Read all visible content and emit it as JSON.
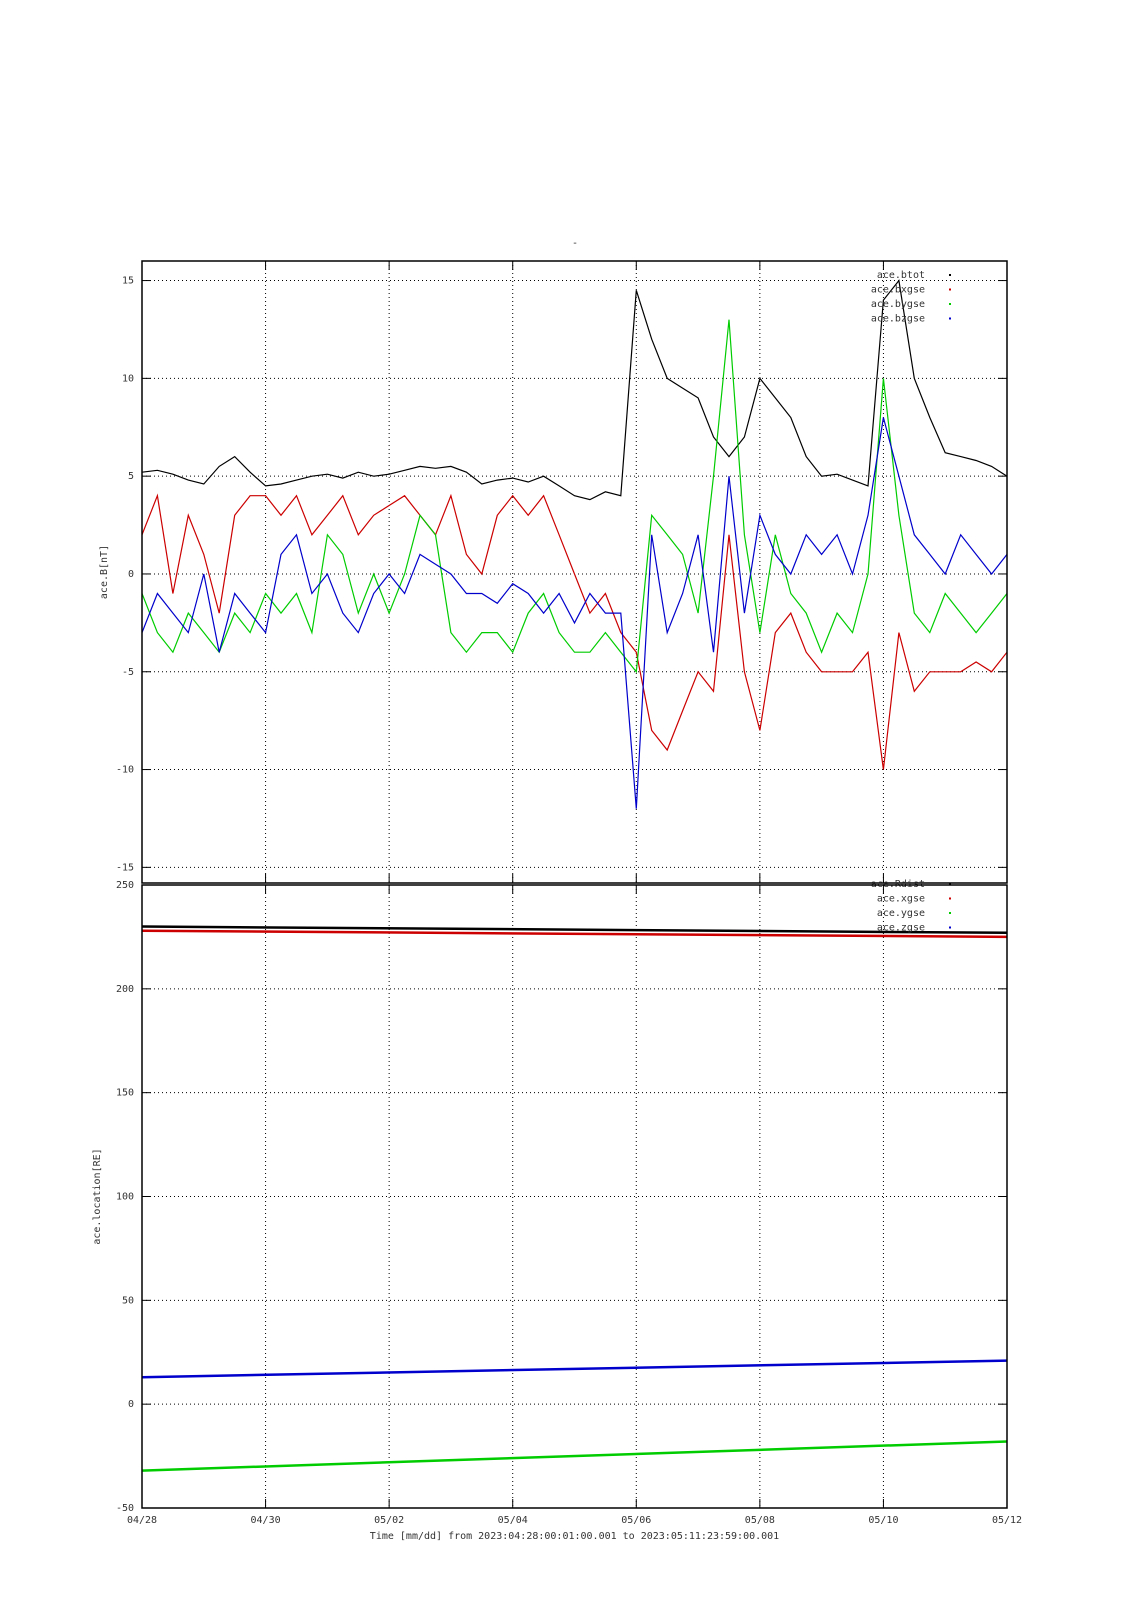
{
  "chart_data": [
    {
      "type": "line",
      "title": "-",
      "ylabel": "ace.B[nT]",
      "legend": "upper right",
      "grid": true,
      "xlim": [
        0,
        14
      ],
      "xticks": [
        0,
        2,
        4,
        6,
        8,
        10,
        12,
        14
      ],
      "ylim": [
        -15.8,
        16
      ],
      "yticks": [
        -15,
        -10,
        -5,
        0,
        5,
        10,
        15
      ],
      "x": [
        0,
        0.25,
        0.5,
        0.75,
        1,
        1.25,
        1.5,
        1.75,
        2,
        2.25,
        2.5,
        2.75,
        3,
        3.25,
        3.5,
        3.75,
        4,
        4.25,
        4.5,
        4.75,
        5,
        5.25,
        5.5,
        5.75,
        6,
        6.25,
        6.5,
        6.75,
        7,
        7.25,
        7.5,
        7.75,
        8,
        8.25,
        8.5,
        8.75,
        9,
        9.25,
        9.5,
        9.75,
        10,
        10.25,
        10.5,
        10.75,
        11,
        11.25,
        11.5,
        11.75,
        12,
        12.25,
        12.5,
        12.75,
        13,
        13.25,
        13.5,
        13.75,
        14
      ],
      "series": [
        {
          "name": "ace.btot",
          "color": "#000000",
          "values": [
            5.2,
            5.3,
            5.1,
            4.8,
            4.6,
            5.5,
            6.0,
            5.2,
            4.5,
            4.6,
            4.8,
            5.0,
            5.1,
            4.9,
            5.2,
            5.0,
            5.1,
            5.3,
            5.5,
            5.4,
            5.5,
            5.2,
            4.6,
            4.8,
            4.9,
            4.7,
            5.0,
            4.5,
            4.0,
            3.8,
            4.2,
            4.0,
            14.5,
            12,
            10,
            9.5,
            9.0,
            7,
            6,
            7,
            10,
            9,
            8,
            6,
            5,
            5.1,
            4.8,
            4.5,
            14,
            15,
            10,
            8,
            6.2,
            6,
            5.8,
            5.5,
            5.0
          ]
        },
        {
          "name": "ace.bxgse",
          "color": "#cc0000",
          "values": [
            2,
            4,
            -1,
            3,
            1,
            -2,
            3,
            4,
            4,
            3,
            4,
            2,
            3,
            4,
            2,
            3,
            3.5,
            4,
            3,
            2,
            4,
            1,
            0,
            3,
            4,
            3,
            4,
            2,
            0,
            -2,
            -1,
            -3,
            -4,
            -8,
            -9,
            -7,
            -5,
            -6,
            2,
            -5,
            -8,
            -3,
            -2,
            -4,
            -5,
            -5,
            -5,
            -4,
            -10,
            -3,
            -6,
            -5,
            -5,
            -5,
            -4.5,
            -5,
            -4
          ]
        },
        {
          "name": "ace.bygse",
          "color": "#00cc00",
          "values": [
            -1,
            -3,
            -4,
            -2,
            -3,
            -4,
            -2,
            -3,
            -1,
            -2,
            -1,
            -3,
            2,
            1,
            -2,
            0,
            -2,
            0,
            3,
            2,
            -3,
            -4,
            -3,
            -3,
            -4,
            -2,
            -1,
            -3,
            -4,
            -4,
            -3,
            -4,
            -5,
            3,
            2,
            1,
            -2,
            5,
            13,
            2,
            -3,
            2,
            -1,
            -2,
            -4,
            -2,
            -3,
            0,
            10,
            3,
            -2,
            -3,
            -1,
            -2,
            -3,
            -2,
            -1
          ]
        },
        {
          "name": "ace.bzgse",
          "color": "#0000cc",
          "values": [
            -3,
            -1,
            -2,
            -3,
            0,
            -4,
            -1,
            -2,
            -3,
            1,
            2,
            -1,
            0,
            -2,
            -3,
            -1,
            0,
            -1,
            1,
            0.5,
            0,
            -1,
            -1,
            -1.5,
            -0.5,
            -1,
            -2,
            -1,
            -2.5,
            -1,
            -2,
            -2,
            -12,
            2,
            -3,
            -1,
            2,
            -4,
            5,
            -2,
            3,
            1,
            0,
            2,
            1,
            2,
            0,
            3,
            8,
            5,
            2,
            1,
            0,
            2,
            1,
            0,
            1
          ]
        }
      ]
    },
    {
      "type": "line",
      "ylabel": "ace.location[RE]",
      "xlabel": "Time [mm/dd]  from 2023:04:28:00:01:00.001  to  2023:05:11:23:59:00.001",
      "legend": "upper right",
      "grid": true,
      "xlim": [
        0,
        14
      ],
      "xticks": [
        {
          "value": 0,
          "label": "04/28"
        },
        {
          "value": 2,
          "label": "04/30"
        },
        {
          "value": 4,
          "label": "05/02"
        },
        {
          "value": 6,
          "label": "05/04"
        },
        {
          "value": 8,
          "label": "05/06"
        },
        {
          "value": 10,
          "label": "05/08"
        },
        {
          "value": 12,
          "label": "05/10"
        },
        {
          "value": 14,
          "label": "05/12"
        }
      ],
      "ylim": [
        -50,
        250
      ],
      "yticks": [
        -50,
        0,
        50,
        100,
        150,
        200,
        250
      ],
      "x": [
        0,
        14
      ],
      "series": [
        {
          "name": "ace.Rdist",
          "color": "#000000",
          "values": [
            230,
            227
          ]
        },
        {
          "name": "ace.xgse",
          "color": "#cc0000",
          "values": [
            228,
            225
          ]
        },
        {
          "name": "ace.ygse",
          "color": "#00cc00",
          "values": [
            -32,
            -18
          ]
        },
        {
          "name": "ace.zgse",
          "color": "#0000cc",
          "values": [
            13,
            21
          ]
        }
      ]
    }
  ]
}
